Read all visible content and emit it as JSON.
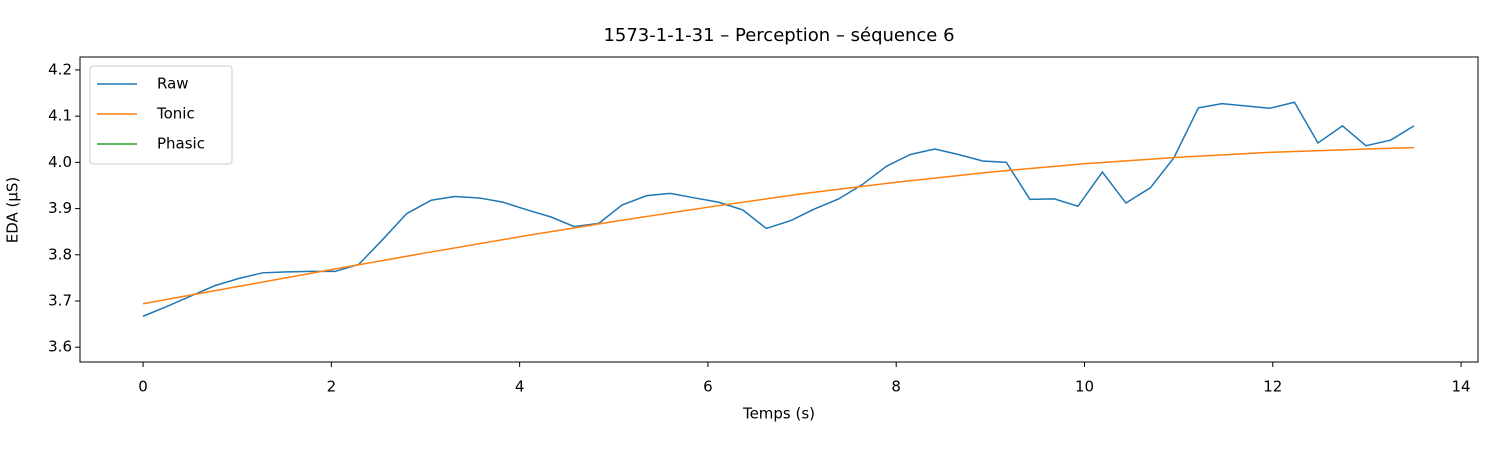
{
  "chart_data": {
    "type": "line",
    "title": "1573-1-1-31 – Perception – séquence 6",
    "xlabel": "Temps (s)",
    "ylabel": "EDA (µS)",
    "xlim": [
      -0.67,
      14.18
    ],
    "ylim": [
      3.568,
      4.228
    ],
    "xticks": [
      0,
      2,
      4,
      6,
      8,
      10,
      12,
      14
    ],
    "yticks": [
      3.6,
      3.7,
      3.8,
      3.9,
      {
        "value": 4,
        "label": "4.0"
      },
      4.1,
      4.2
    ],
    "legend": "upper left",
    "series": [
      {
        "name": "Raw",
        "color": "#1f77b4",
        "x": [
          0,
          0.25,
          0.51,
          0.76,
          1.02,
          1.27,
          1.53,
          1.78,
          2.04,
          2.29,
          2.55,
          2.8,
          3.06,
          3.31,
          3.57,
          3.82,
          4.08,
          4.33,
          4.58,
          4.84,
          5.09,
          5.35,
          5.6,
          5.86,
          6.11,
          6.37,
          6.62,
          6.88,
          7.13,
          7.39,
          7.64,
          7.9,
          8.15,
          8.41,
          8.66,
          8.92,
          9.17,
          9.42,
          9.68,
          9.93,
          10.19,
          10.44,
          10.7,
          10.95,
          11.21,
          11.46,
          11.72,
          11.97,
          12.23,
          12.48,
          12.74,
          12.99,
          13.25,
          13.5
        ],
        "values": [
          3.667,
          3.688,
          3.711,
          3.733,
          3.749,
          3.761,
          3.763,
          3.764,
          3.764,
          3.779,
          3.834,
          3.889,
          3.918,
          3.926,
          3.923,
          3.914,
          3.897,
          3.882,
          3.861,
          3.868,
          3.908,
          3.928,
          3.933,
          3.923,
          3.914,
          3.897,
          3.857,
          3.874,
          3.899,
          3.921,
          3.952,
          3.992,
          4.017,
          4.029,
          4.017,
          4.003,
          4.0,
          3.92,
          3.921,
          3.905,
          3.979,
          3.912,
          3.945,
          4.01,
          4.118,
          4.127,
          4.122,
          4.117,
          4.13,
          4.042,
          4.079,
          4.036,
          4.048,
          4.079
        ]
      },
      {
        "name": "Tonic",
        "color": "#ff7f0e",
        "x": [
          0,
          1,
          2,
          3,
          4,
          5,
          6,
          7,
          8,
          9,
          10,
          11,
          12,
          13,
          13.5
        ],
        "values": [
          3.694,
          3.731,
          3.768,
          3.804,
          3.839,
          3.872,
          3.903,
          3.932,
          3.957,
          3.979,
          3.997,
          4.011,
          4.022,
          4.029,
          4.032
        ]
      },
      {
        "name": "Phasic",
        "color": "#2ca02c"
      }
    ]
  }
}
